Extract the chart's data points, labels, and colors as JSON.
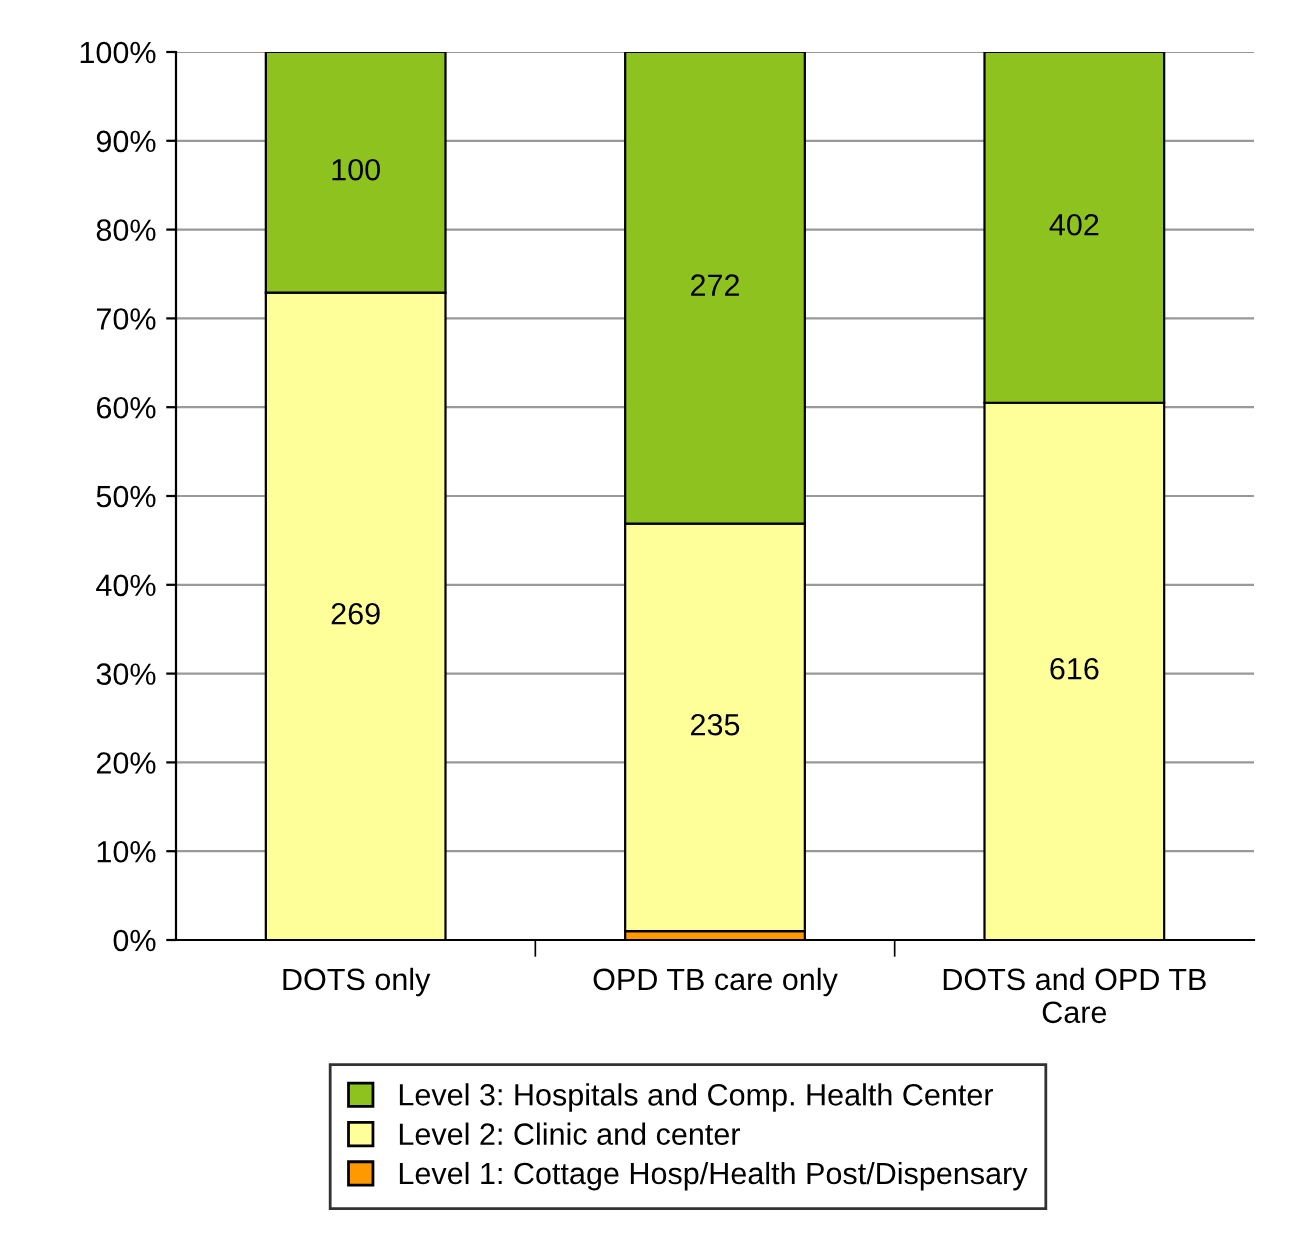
{
  "chart_data": {
    "type": "bar",
    "stacked": true,
    "categories": [
      "DOTS only",
      "OPD TB care only",
      "DOTS and OPD TB\nCare"
    ],
    "series": [
      {
        "name": "Level 1: Cottage Hosp/Health Post/Dispensary",
        "color": "#ff9900",
        "values": [
          0,
          1.0,
          0
        ]
      },
      {
        "name": "Level 2: Clinic and center",
        "color": "#ffff99",
        "values": [
          72.9,
          45.9,
          60.5
        ]
      },
      {
        "name": "Level 3: Hospitals and Comp. Health Center",
        "color": "#8dc21f",
        "values": [
          27.1,
          53.1,
          39.5
        ]
      }
    ],
    "annotations": [
      "269",
      "100",
      "235",
      "272",
      "616",
      "402"
    ],
    "ylim": [
      0,
      100
    ],
    "yticks": [
      {
        "value": 0,
        "label": "0%"
      },
      {
        "value": 10,
        "label": "10%"
      },
      {
        "value": 20,
        "label": "20%"
      },
      {
        "value": 30,
        "label": "30%"
      },
      {
        "value": 40,
        "label": "40%"
      },
      {
        "value": 50,
        "label": "50%"
      },
      {
        "value": 60,
        "label": "60%"
      },
      {
        "value": 70,
        "label": "70%"
      },
      {
        "value": 80,
        "label": "80%"
      },
      {
        "value": 90,
        "label": "90%"
      },
      {
        "value": 100,
        "label": "100%"
      }
    ],
    "grid": "y",
    "legend": "bottom"
  }
}
